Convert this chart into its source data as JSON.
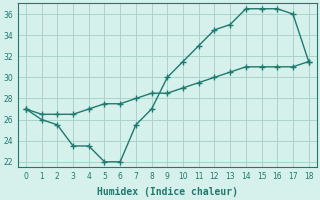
{
  "xlabel": "Humidex (Indice chaleur)",
  "x": [
    0,
    1,
    2,
    3,
    4,
    5,
    6,
    7,
    8,
    9,
    10,
    11,
    12,
    13,
    14,
    15,
    16,
    17,
    18
  ],
  "line1": [
    27,
    26,
    25.5,
    23.5,
    23.5,
    22,
    22,
    25.5,
    27,
    30,
    31.5,
    33,
    34.5,
    35,
    36.5,
    36.5,
    36.5,
    36,
    31.5
  ],
  "line2": [
    27,
    26.5,
    26.5,
    26.5,
    27,
    27.5,
    27.5,
    28,
    28.5,
    28.5,
    29,
    29.5,
    30,
    30.5,
    31,
    31,
    31,
    31,
    31.5
  ],
  "ylim": [
    21.5,
    37
  ],
  "yticks": [
    22,
    24,
    26,
    28,
    30,
    32,
    34,
    36
  ],
  "xticks": [
    0,
    1,
    2,
    3,
    4,
    5,
    6,
    7,
    8,
    9,
    10,
    11,
    12,
    13,
    14,
    15,
    16,
    17,
    18
  ],
  "line_color": "#1e7a6e",
  "bg_color": "#d6f0ec",
  "grid_color": "#aad4ce"
}
